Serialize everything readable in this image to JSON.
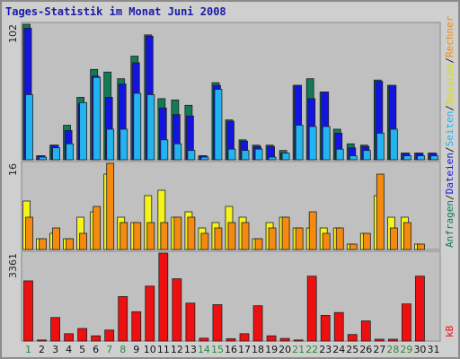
{
  "title": "Tages-Statistik im Monat Juni 2008",
  "colors": {
    "anfragen": "#127a56",
    "dateien": "#1414e0",
    "seiten": "#22b4f0",
    "besuche": "#f4f41c",
    "rechner": "#f48a10",
    "kb": "#ee1010",
    "weekend_label": "#2a8a3a",
    "weekday_label": "#111111"
  },
  "legend": {
    "top": [
      {
        "text": "Anfragen",
        "color": "#127a56"
      },
      {
        "text": "/",
        "color": "#222222"
      },
      {
        "text": "Dateien",
        "color": "#1414e0"
      },
      {
        "text": "/",
        "color": "#222222"
      },
      {
        "text": "Seiten",
        "color": "#22b4f0"
      },
      {
        "text": "/",
        "color": "#222222"
      },
      {
        "text": "Besuche",
        "color": "#dcdc10"
      },
      {
        "text": "/",
        "color": "#222222"
      },
      {
        "text": "Rechner",
        "color": "#f48a10"
      }
    ],
    "bottom": [
      {
        "text": "kB",
        "color": "#ee1010"
      }
    ]
  },
  "chart_data": [
    {
      "type": "bar",
      "panel": "hits",
      "ymax_label": "102",
      "ylim": [
        0,
        102
      ],
      "x": [
        1,
        2,
        3,
        4,
        5,
        6,
        7,
        8,
        9,
        10,
        11,
        12,
        13,
        14,
        15,
        16,
        17,
        18,
        19,
        20,
        21,
        22,
        23,
        24,
        25,
        26,
        27,
        28,
        29,
        30,
        31
      ],
      "weekend_days": [
        1,
        7,
        8,
        14,
        15,
        21,
        22,
        28,
        29
      ],
      "series": [
        {
          "name": "Anfragen",
          "values": [
            102,
            3,
            11,
            26,
            47,
            68,
            66,
            61,
            78,
            94,
            46,
            45,
            41,
            3,
            58,
            30,
            15,
            11,
            11,
            7,
            56,
            61,
            51,
            23,
            12,
            11,
            60,
            56,
            5,
            5,
            5
          ]
        },
        {
          "name": "Dateien",
          "values": [
            99,
            3,
            11,
            22,
            42,
            63,
            47,
            57,
            73,
            93,
            39,
            34,
            33,
            3,
            56,
            29,
            14,
            10,
            10,
            5,
            56,
            46,
            51,
            20,
            9,
            10,
            59,
            56,
            5,
            5,
            5
          ]
        },
        {
          "name": "Seiten",
          "values": [
            49,
            2,
            9,
            12,
            43,
            62,
            23,
            23,
            50,
            49,
            15,
            12,
            7,
            2,
            53,
            8,
            7,
            8,
            2,
            5,
            26,
            25,
            25,
            8,
            3,
            7,
            20,
            23,
            3,
            3,
            3
          ]
        }
      ]
    },
    {
      "type": "bar",
      "panel": "visits",
      "ymax_label": "16",
      "ylim": [
        0,
        16
      ],
      "x": [
        1,
        2,
        3,
        4,
        5,
        6,
        7,
        8,
        9,
        10,
        11,
        12,
        13,
        14,
        15,
        16,
        17,
        18,
        19,
        20,
        21,
        22,
        23,
        24,
        25,
        26,
        27,
        28,
        29,
        30,
        31
      ],
      "series": [
        {
          "name": "Besuche",
          "values": [
            9,
            2,
            3,
            2,
            6,
            7,
            14,
            6,
            5,
            10,
            11,
            6,
            7,
            4,
            5,
            8,
            6,
            2,
            5,
            6,
            4,
            4,
            4,
            4,
            1,
            3,
            10,
            6,
            6,
            1,
            0
          ]
        },
        {
          "name": "Rechner",
          "values": [
            6,
            2,
            4,
            2,
            3,
            8,
            16,
            5,
            5,
            5,
            5,
            6,
            6,
            3,
            4,
            5,
            5,
            2,
            4,
            6,
            4,
            7,
            3,
            4,
            1,
            3,
            14,
            4,
            5,
            1,
            0
          ]
        }
      ]
    },
    {
      "type": "bar",
      "panel": "kb",
      "ymax_label": "3361",
      "ylim": [
        0,
        3361
      ],
      "x": [
        1,
        2,
        3,
        4,
        5,
        6,
        7,
        8,
        9,
        10,
        11,
        12,
        13,
        14,
        15,
        16,
        17,
        18,
        19,
        20,
        21,
        22,
        23,
        24,
        25,
        26,
        27,
        28,
        29,
        30,
        31
      ],
      "series": [
        {
          "name": "kB",
          "values": [
            2300,
            40,
            900,
            280,
            480,
            200,
            420,
            1700,
            1120,
            2100,
            3361,
            2380,
            1450,
            110,
            1390,
            90,
            280,
            1350,
            200,
            100,
            40,
            2480,
            980,
            1090,
            250,
            770,
            70,
            70,
            1420,
            2480,
            0
          ]
        }
      ]
    }
  ]
}
